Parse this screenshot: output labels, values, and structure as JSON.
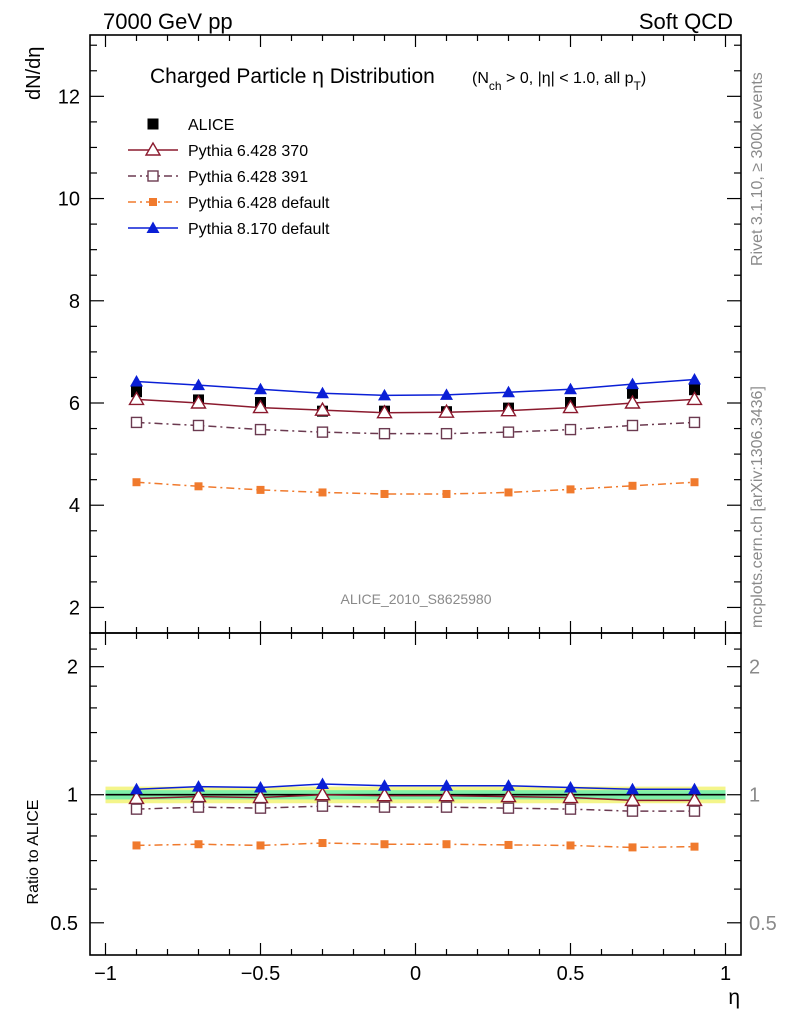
{
  "header": {
    "left": "7000 GeV pp",
    "right": "Soft QCD"
  },
  "side": {
    "rivet": "Rivet 3.1.10, ≥ 300k events",
    "mcplots": "mcplots.cern.ch [arXiv:1306.3436]"
  },
  "chart_data": [
    {
      "type": "scatter",
      "title_main": "Charged Particle η Distribution",
      "title_sub_parts": [
        "(N",
        "ch",
        " > 0, |η| < 1.0, all p",
        "T",
        ")"
      ],
      "ylabel": "dN/dη",
      "xlim": [
        -1.05,
        1.05
      ],
      "ylim": [
        1.5,
        13.2
      ],
      "yticks": [
        2,
        4,
        6,
        8,
        10,
        12
      ],
      "yticklabels": [
        "2",
        "4",
        "6",
        "8",
        "10",
        "12"
      ],
      "watermark": "ALICE_2010_S8625980",
      "x": [
        -0.9,
        -0.7,
        -0.5,
        -0.3,
        -0.1,
        0.1,
        0.3,
        0.5,
        0.7,
        0.9
      ],
      "legend_position": "top-left",
      "series": [
        {
          "name": "ALICE",
          "color": "#000000",
          "marker": "square-filled",
          "line": "none",
          "values": [
            6.22,
            6.06,
            6.01,
            5.84,
            5.84,
            5.83,
            5.9,
            6.01,
            6.19,
            6.26
          ]
        },
        {
          "name": "Pythia 6.428 370",
          "color": "#8b1a2e",
          "marker": "triangle-open",
          "line": "solid",
          "values": [
            6.07,
            6.0,
            5.91,
            5.86,
            5.81,
            5.82,
            5.85,
            5.91,
            6.0,
            6.07
          ]
        },
        {
          "name": "Pythia 6.428 391",
          "color": "#6b3a50",
          "marker": "square-open",
          "line": "dashdot",
          "values": [
            5.62,
            5.56,
            5.48,
            5.43,
            5.4,
            5.4,
            5.43,
            5.48,
            5.56,
            5.62
          ]
        },
        {
          "name": "Pythia 6.428 default",
          "color": "#f07a2d",
          "marker": "square-small",
          "line": "dashdot",
          "values": [
            4.45,
            4.37,
            4.3,
            4.25,
            4.22,
            4.22,
            4.25,
            4.31,
            4.38,
            4.45
          ]
        },
        {
          "name": "Pythia 8.170 default",
          "color": "#0a1fd6",
          "marker": "triangle-filled",
          "line": "solid",
          "values": [
            6.42,
            6.35,
            6.27,
            6.19,
            6.15,
            6.16,
            6.21,
            6.27,
            6.37,
            6.46
          ]
        }
      ]
    },
    {
      "type": "scatter",
      "ylabel": "Ratio to ALICE",
      "xlabel": "η",
      "yscale": "log",
      "xlim": [
        -1.05,
        1.05
      ],
      "ylim": [
        0.42,
        2.4
      ],
      "yticks": [
        0.5,
        1,
        2
      ],
      "yticklabels": [
        "0.5",
        "1",
        "2"
      ],
      "xticks": [
        -1,
        -0.5,
        0,
        0.5,
        1
      ],
      "xticklabels": [
        "−1",
        "−0.5",
        "0",
        "0.5",
        "1"
      ],
      "x": [
        -0.9,
        -0.7,
        -0.5,
        -0.3,
        -0.1,
        0.1,
        0.3,
        0.5,
        0.7,
        0.9
      ],
      "band": {
        "inner": [
          0.975,
          1.025
        ],
        "outer": [
          0.955,
          1.045
        ],
        "inner_color": "#7ff0a8",
        "outer_color": "#f4f58a"
      },
      "series": [
        {
          "name": "Pythia 6.428 370",
          "color": "#8b1a2e",
          "marker": "triangle-open",
          "line": "solid",
          "values": [
            0.98,
            0.99,
            0.985,
            1.0,
            0.995,
            0.995,
            0.99,
            0.985,
            0.97,
            0.97
          ]
        },
        {
          "name": "Pythia 6.428 391",
          "color": "#6b3a50",
          "marker": "square-open",
          "line": "dashdot",
          "values": [
            0.925,
            0.935,
            0.93,
            0.94,
            0.935,
            0.935,
            0.93,
            0.925,
            0.915,
            0.915
          ]
        },
        {
          "name": "Pythia 6.428 default",
          "color": "#f07a2d",
          "marker": "square-small",
          "line": "dashdot",
          "values": [
            0.76,
            0.765,
            0.76,
            0.77,
            0.765,
            0.765,
            0.762,
            0.76,
            0.752,
            0.755
          ]
        },
        {
          "name": "Pythia 8.170 default",
          "color": "#0a1fd6",
          "marker": "triangle-filled",
          "line": "solid",
          "values": [
            1.03,
            1.045,
            1.04,
            1.06,
            1.05,
            1.05,
            1.05,
            1.04,
            1.03,
            1.03
          ]
        }
      ]
    }
  ]
}
